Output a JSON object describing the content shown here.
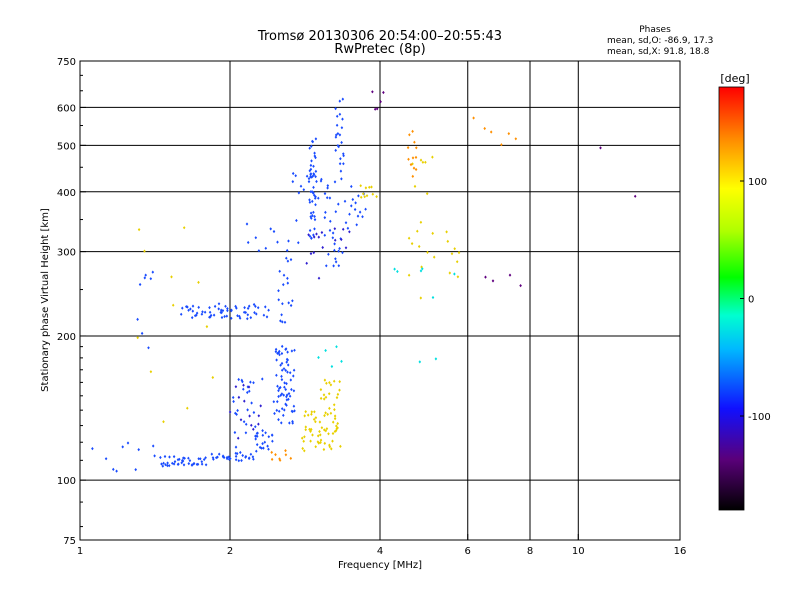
{
  "chart_data": {
    "type": "scatter",
    "title": "Tromsø 20130306 20:54:00–20:55:43",
    "subtitle": "RwPretec (8p)",
    "phase_block": {
      "heading": "Phases",
      "line_o": "mean, sd,O: -86.9, 17.3",
      "line_x": "mean, sd,X:  91.8, 18.8"
    },
    "xlabel": "Frequency [MHz]",
    "ylabel": "Stationary phase Virtual Height [km]",
    "x_scale": "log",
    "y_scale": "log",
    "xlim": [
      1,
      16
    ],
    "ylim": [
      75,
      750
    ],
    "x_ticks": [
      1,
      2,
      4,
      6,
      8,
      10,
      16
    ],
    "x_tick_labels": [
      "1",
      "2",
      "4",
      "6",
      "8",
      "10",
      "16"
    ],
    "x_gridlines": [
      2,
      4,
      6,
      8,
      10
    ],
    "y_ticks": [
      75,
      100,
      200,
      300,
      400,
      500,
      600,
      750
    ],
    "y_tick_labels": [
      "75",
      "100",
      "200",
      "300",
      "400",
      "500",
      "600",
      "750"
    ],
    "y_gridlines": [
      100,
      200,
      300,
      400,
      500,
      600
    ],
    "grid": true,
    "colorbar": {
      "label": "[deg]",
      "range": [
        -180,
        180
      ],
      "ticks": [
        100,
        0,
        -100
      ],
      "tick_labels": [
        "100",
        "0",
        "-100"
      ]
    },
    "series": [
      {
        "phase_deg": -100,
        "color": "#1a4cff",
        "groups": [
          {
            "f": [
              1.42,
              1.82
            ],
            "h": [
              107,
              112
            ],
            "n": 40,
            "jf": 0.006,
            "jh": 0.012
          },
          {
            "f": [
              1.82,
              2.25
            ],
            "h": [
              110,
              114
            ],
            "n": 30,
            "jf": 0.006,
            "jh": 0.012
          },
          {
            "f": [
              2.25,
              2.45
            ],
            "h": [
              113,
              128
            ],
            "n": 16,
            "jf": 0.006,
            "jh": 0.02
          },
          {
            "f": [
              2.45,
              2.7
            ],
            "h": [
              130,
              190
            ],
            "n": 70,
            "jf": 0.012,
            "jh": 0.03
          },
          {
            "f": [
              2.0,
              2.35
            ],
            "h": [
              115,
              170
            ],
            "n": 30,
            "jf": 0.01,
            "jh": 0.05
          },
          {
            "f": [
              1.55,
              2.45
            ],
            "h": [
              218,
              232
            ],
            "n": 60,
            "jf": 0.005,
            "jh": 0.01
          },
          {
            "f": [
              2.48,
              2.68
            ],
            "h": [
              210,
              295
            ],
            "n": 18,
            "jf": 0.008,
            "jh": 0.02
          },
          {
            "f": [
              2.1,
              2.8
            ],
            "h": [
              300,
              350
            ],
            "n": 12,
            "jf": 0.008,
            "jh": 0.02
          },
          {
            "f": [
              2.88,
              2.98
            ],
            "h": [
              320,
              520
            ],
            "n": 45,
            "jf": 0.006,
            "jh": 0.05
          },
          {
            "f": [
              2.65,
              3.1
            ],
            "h": [
              380,
              440
            ],
            "n": 14,
            "jf": 0.01,
            "jh": 0.03
          },
          {
            "f": [
              3.05,
              3.4
            ],
            "h": [
              280,
              420
            ],
            "n": 30,
            "jf": 0.01,
            "jh": 0.04
          },
          {
            "f": [
              3.25,
              3.4
            ],
            "h": [
              440,
              630
            ],
            "n": 22,
            "jf": 0.006,
            "jh": 0.04
          },
          {
            "f": [
              3.4,
              3.75
            ],
            "h": [
              330,
              410
            ],
            "n": 15,
            "jf": 0.01,
            "jh": 0.03
          },
          {
            "f": [
              1.05,
              1.45
            ],
            "h": [
              105,
              120
            ],
            "n": 10,
            "jf": 0.02,
            "jh": 0.02
          },
          {
            "f": [
              1.3,
              1.4
            ],
            "h": [
              190,
              290
            ],
            "n": 8,
            "jf": 0.01,
            "jh": 0.05
          }
        ]
      },
      {
        "phase_deg": -130,
        "color": "#3020d0",
        "groups": [
          {
            "f": [
              2.0,
              2.35
            ],
            "h": [
              120,
              165
            ],
            "n": 14,
            "jf": 0.01,
            "jh": 0.04
          },
          {
            "f": [
              2.85,
              3.1
            ],
            "h": [
              260,
              330
            ],
            "n": 10,
            "jf": 0.008,
            "jh": 0.03
          },
          {
            "f": [
              3.2,
              3.5
            ],
            "h": [
              290,
              340
            ],
            "n": 6,
            "jf": 0.008,
            "jh": 0.02
          }
        ]
      },
      {
        "phase_deg": 95,
        "color": "#e8d000",
        "groups": [
          {
            "f": [
              2.75,
              3.35
            ],
            "h": [
              115,
              140
            ],
            "n": 55,
            "jf": 0.01,
            "jh": 0.025
          },
          {
            "f": [
              3.0,
              3.35
            ],
            "h": [
              130,
              165
            ],
            "n": 20,
            "jf": 0.008,
            "jh": 0.03
          },
          {
            "f": [
              3.6,
              3.95
            ],
            "h": [
              385,
              420
            ],
            "n": 10,
            "jf": 0.01,
            "jh": 0.02
          },
          {
            "f": [
              4.5,
              5.2
            ],
            "h": [
              230,
              520
            ],
            "n": 18,
            "jf": 0.015,
            "jh": 0.06
          },
          {
            "f": [
              5.4,
              5.8
            ],
            "h": [
              265,
              335
            ],
            "n": 8,
            "jf": 0.01,
            "jh": 0.03
          },
          {
            "f": [
              1.25,
              1.9
            ],
            "h": [
              120,
              350
            ],
            "n": 12,
            "jf": 0.03,
            "jh": 0.08
          }
        ]
      },
      {
        "phase_deg": 140,
        "color": "#ff9000",
        "groups": [
          {
            "f": [
              4.55,
              4.75
            ],
            "h": [
              420,
              540
            ],
            "n": 12,
            "jf": 0.008,
            "jh": 0.03
          },
          {
            "f": [
              2.4,
              2.65
            ],
            "h": [
              110,
              116
            ],
            "n": 8,
            "jf": 0.008,
            "jh": 0.01
          },
          {
            "f": [
              6.1,
              7.6
            ],
            "h": [
              450,
              590
            ],
            "n": 6,
            "jf": 0.02,
            "jh": 0.03
          }
        ]
      },
      {
        "phase_deg": -10,
        "color": "#00e0e0",
        "groups": [
          {
            "f": [
              3.0,
              3.4
            ],
            "h": [
              175,
              200
            ],
            "n": 5,
            "jf": 0.01,
            "jh": 0.02
          },
          {
            "f": [
              4.2,
              5.6
            ],
            "h": [
              150,
              400
            ],
            "n": 8,
            "jf": 0.03,
            "jh": 0.08
          }
        ]
      },
      {
        "phase_deg": -150,
        "color": "#600080",
        "groups": [
          {
            "f": [
              3.85,
              4.1
            ],
            "h": [
              580,
              650
            ],
            "n": 5,
            "jf": 0.006,
            "jh": 0.02
          },
          {
            "f": [
              6.3,
              7.8
            ],
            "h": [
              250,
              280
            ],
            "n": 4,
            "jf": 0.02,
            "jh": 0.02
          },
          {
            "f": [
              11,
              13
            ],
            "h": [
              160,
              550
            ],
            "n": 2,
            "jf": 0.01,
            "jh": 0.01
          }
        ]
      }
    ]
  }
}
